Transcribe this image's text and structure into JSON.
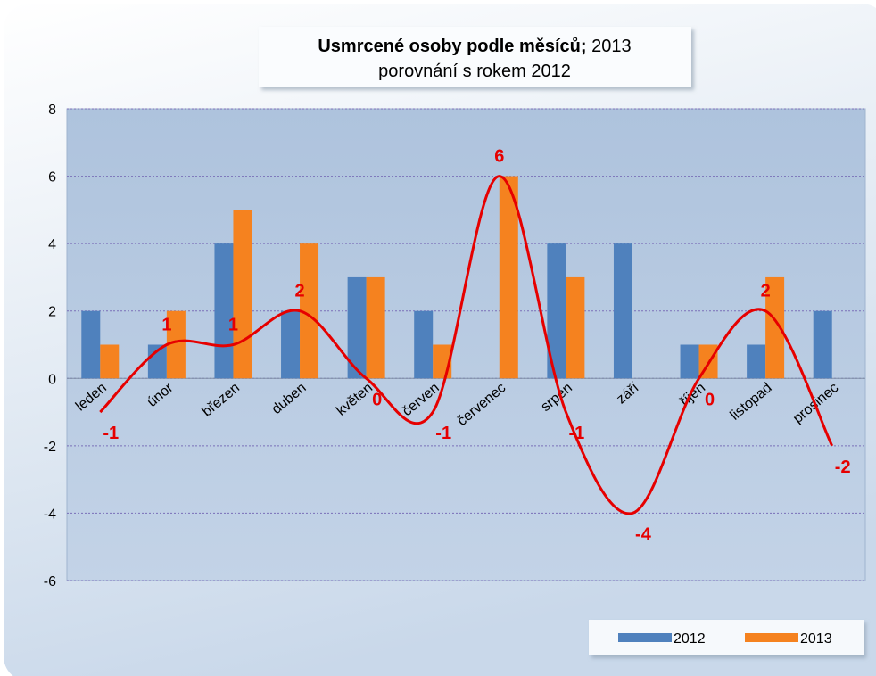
{
  "chart_data": {
    "type": "bar",
    "title": "Usmrcené osoby podle měsíců;",
    "title_suffix": "2013",
    "subtitle": "porovnání s rokem 2012",
    "categories": [
      "leden",
      "únor",
      "březen",
      "duben",
      "květen",
      "červen",
      "červenec",
      "srpen",
      "září",
      "říjen",
      "listopad",
      "prosinec"
    ],
    "series": [
      {
        "name": "2012",
        "type": "bar",
        "color": "#4f81bd",
        "values": [
          2,
          1,
          4,
          2,
          3,
          2,
          0,
          4,
          4,
          1,
          1,
          2
        ]
      },
      {
        "name": "2013",
        "type": "bar",
        "color": "#f5821f",
        "values": [
          1,
          2,
          5,
          4,
          3,
          1,
          6,
          3,
          0,
          1,
          3,
          0
        ]
      },
      {
        "type": "line",
        "smooth": true,
        "color": "#e60000",
        "values": [
          -1,
          1,
          1,
          2,
          0,
          -1,
          6,
          -1,
          -4,
          0,
          2,
          -2
        ]
      }
    ],
    "ylim": [
      -6,
      8
    ],
    "yticks": [
      -6,
      -4,
      -2,
      0,
      2,
      4,
      6,
      8
    ],
    "grid": true,
    "legend": "bottom-right"
  }
}
